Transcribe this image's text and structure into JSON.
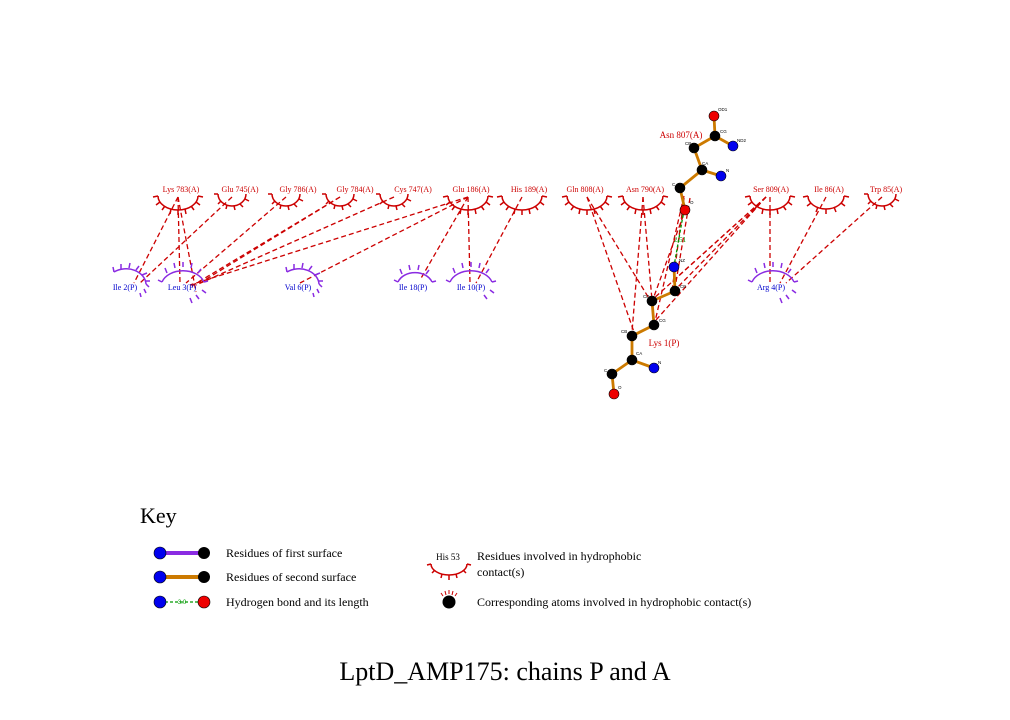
{
  "title": "LptD_AMP175: chains P and A",
  "key": {
    "heading": "Key",
    "items": {
      "first_surface": "Residues of first surface",
      "second_surface": "Residues of second surface",
      "hbond": "Hydrogen bond and its length",
      "hbond_sample_length": "3.0",
      "hydrophobic_residue": "Residues involved in hydrophobic",
      "hydrophobic_residue_2": "contact(s)",
      "hydrophobic_sample": "His 53",
      "hydrophobic_atoms": "Corresponding atoms involved in hydrophobic contact(s)"
    }
  },
  "colors": {
    "chain_A": "#cc0000",
    "chain_P_residue": "#8a2be2",
    "chain_P_label": "#0000cc",
    "bond_second_surface": "#cc7a00",
    "bond_first_surface": "#8a2be2",
    "hbond": "#009900",
    "contact": "#cc0000",
    "atom_C": "#000000",
    "atom_N": "#0000ee",
    "atom_O": "#ee0000"
  },
  "residues_chain_A": [
    "Lys 783(A)",
    "Glu 745(A)",
    "Gly 786(A)",
    "Gly 784(A)",
    "Cys 747(A)",
    "Glu 186(A)",
    "His 189(A)",
    "Gln 808(A)",
    "Asn 790(A)",
    "Ser 809(A)",
    "Ile 86(A)",
    "Trp 85(A)"
  ],
  "residues_chain_P": [
    "Ile 2(P)",
    "Leu 3(P)",
    "Val 6(P)",
    "Ile 18(P)",
    "Ile 10(P)",
    "Arg 4(P)"
  ],
  "ligand_residues": {
    "asn807": "Asn 807(A)",
    "lys1": "Lys 1(P)"
  },
  "hbond_length": "2.51",
  "atom_labels": {
    "asn807": [
      "OD1",
      "CG",
      "ND2",
      "CB",
      "CA",
      "N",
      "C",
      "O"
    ],
    "lys1": [
      "NZ",
      "CE",
      "CD",
      "CG",
      "CB",
      "CA",
      "N",
      "C",
      "O"
    ]
  }
}
